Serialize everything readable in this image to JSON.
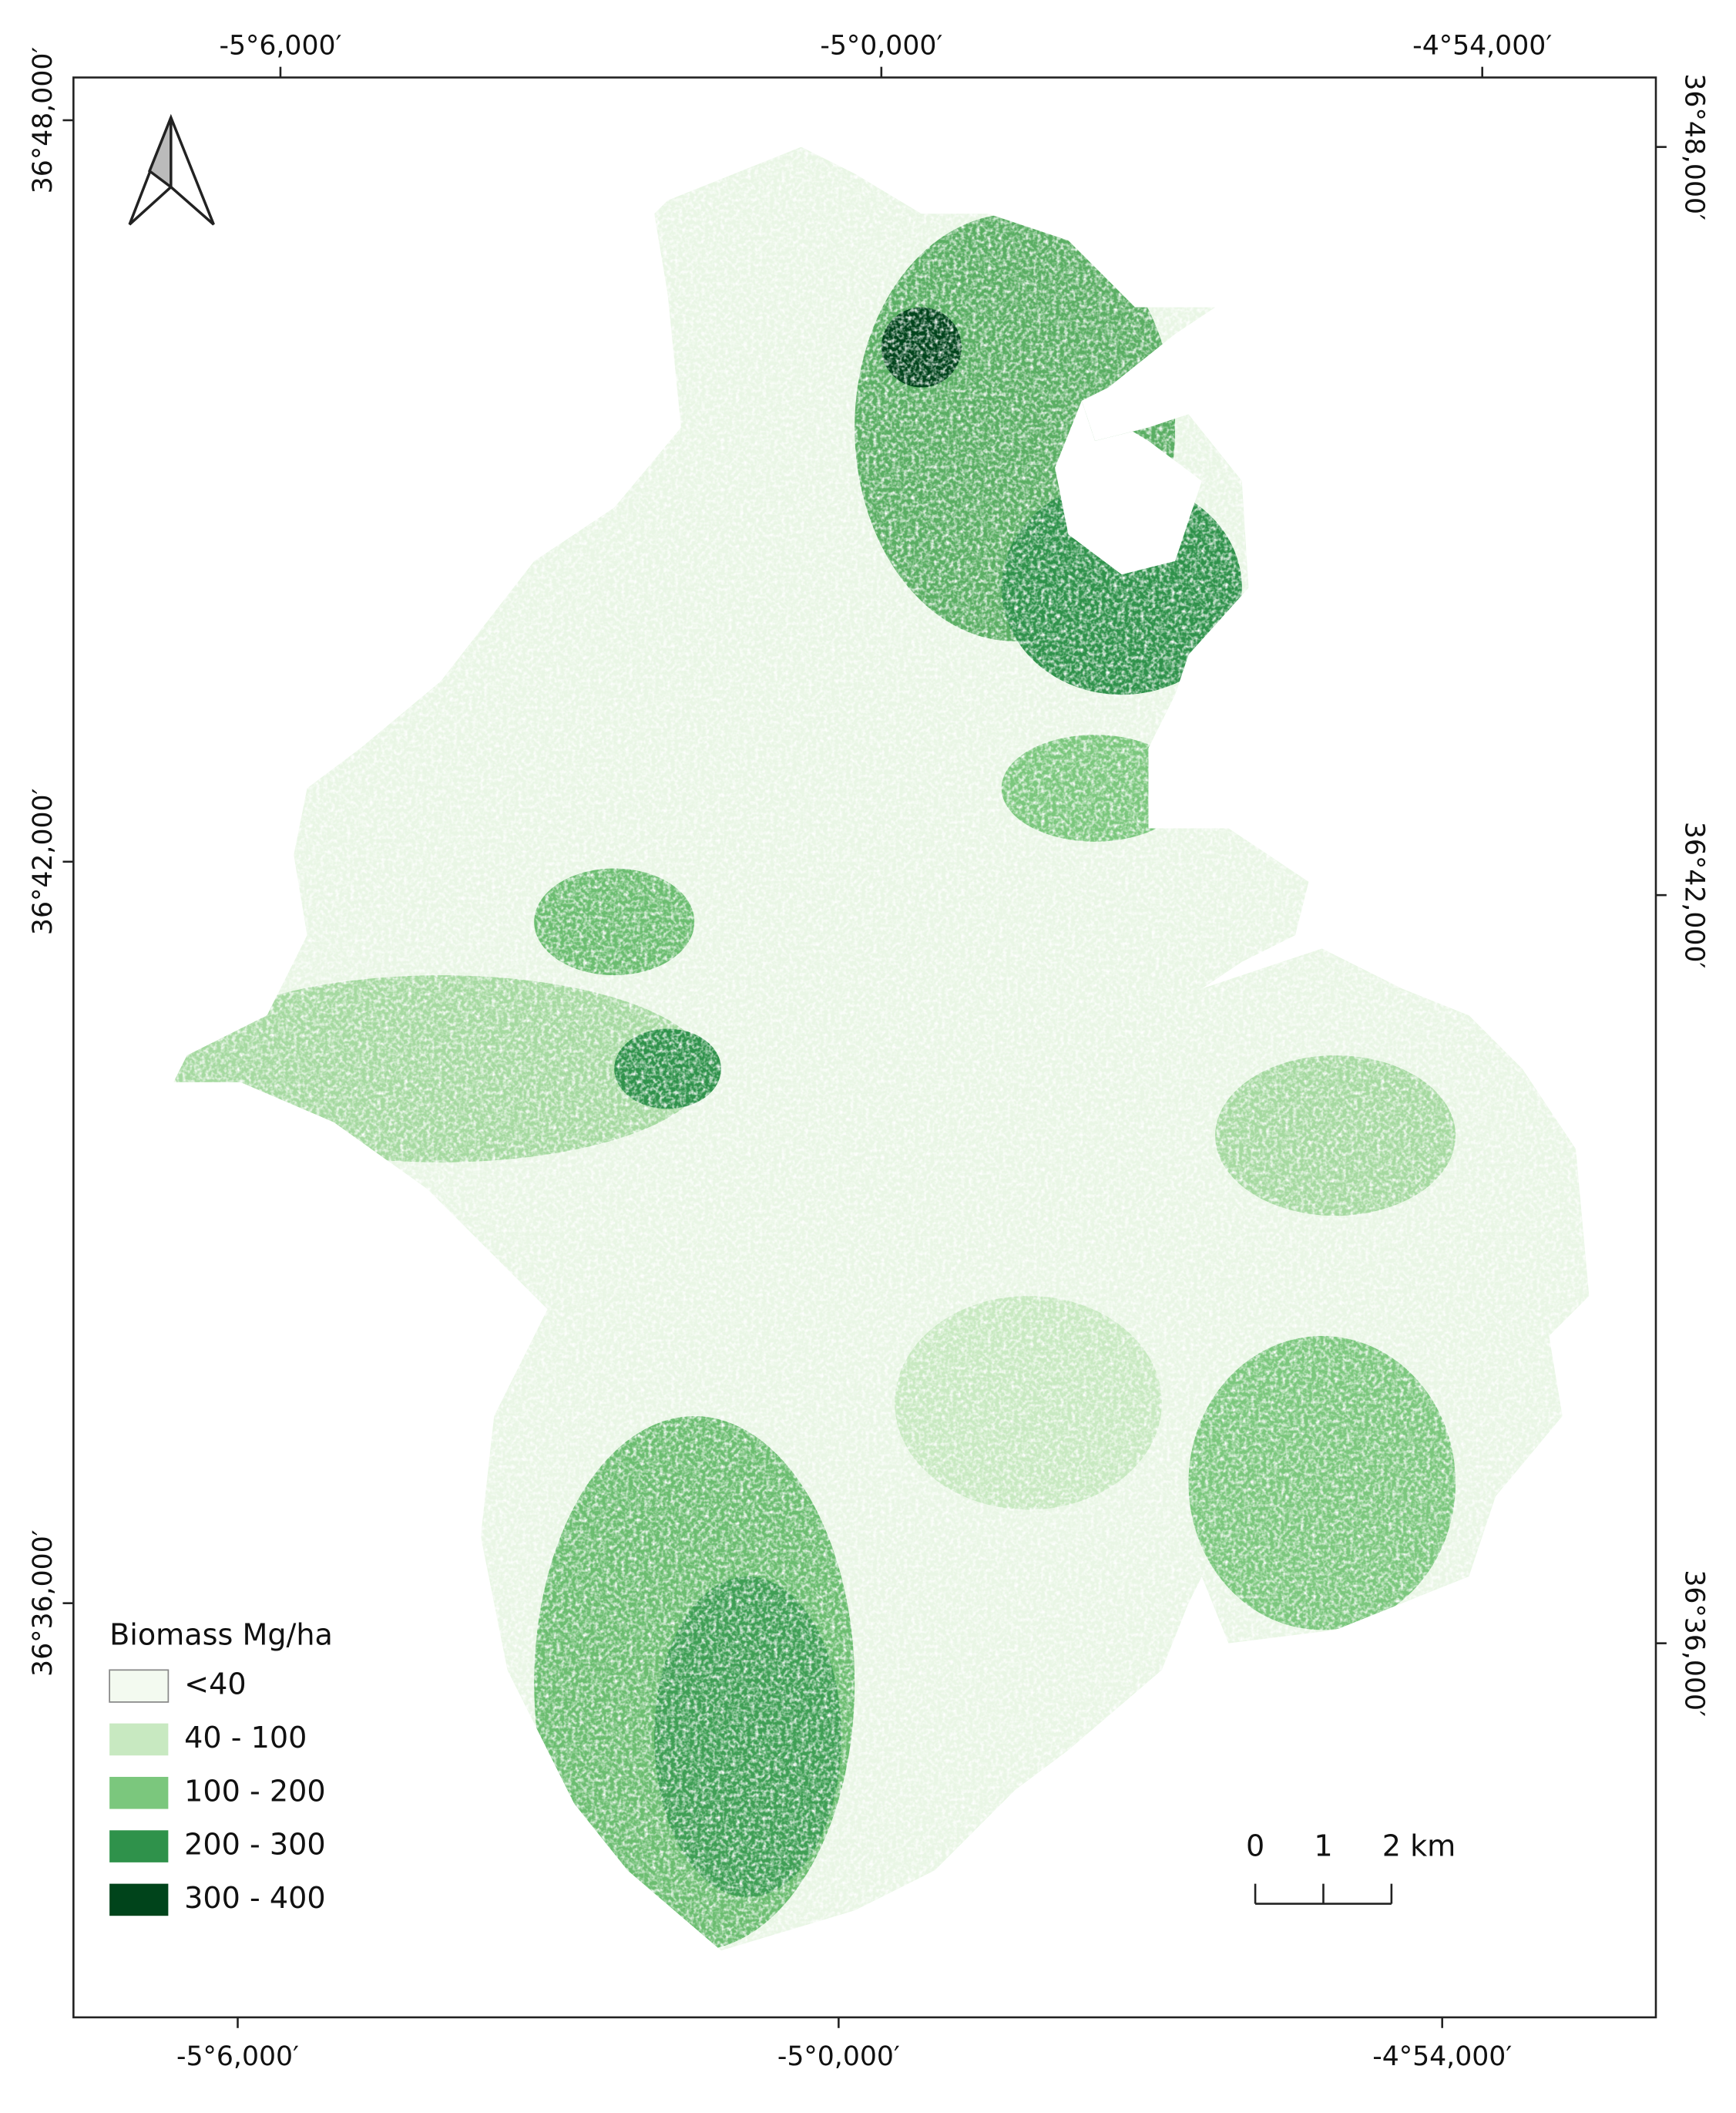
{
  "map": {
    "top_labels": [
      "-5°6,000′",
      "-5°0,000′",
      "-4°54,000′"
    ],
    "bottom_labels": [
      "-5°6,000′",
      "-5°0,000′",
      "-4°54,000′"
    ],
    "left_labels": [
      "36°48,000′",
      "36°42,000′",
      "36°36,000′"
    ],
    "right_labels": [
      "36°48,000′",
      "36°42,000′",
      "36°36,000′"
    ],
    "legend": {
      "title": "Biomass Mg/ha",
      "items": [
        {
          "label": "<40",
          "color": "#f3faf0"
        },
        {
          "label": "40 - 100",
          "color": "#c8e9c1"
        },
        {
          "label": "100 - 200",
          "color": "#7bc77d"
        },
        {
          "label": "200 - 300",
          "color": "#2f924b"
        },
        {
          "label": "300 - 400",
          "color": "#00441b"
        }
      ]
    },
    "scale_bar": [
      "0",
      "1",
      "2 km"
    ]
  }
}
